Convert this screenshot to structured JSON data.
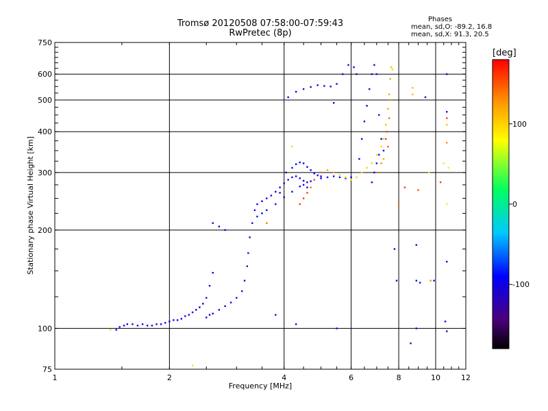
{
  "chart_data": {
    "type": "scatter",
    "title_line1": "Tromsø 20120508 07:58:00-07:59:43",
    "title_line2": "RwPretec (8p)",
    "phases_title": "Phases",
    "phases_line1": "mean, sd,O: -89.2, 16.8",
    "phases_line2": "mean, sd,X:  91.3, 20.5",
    "xlabel": "Frequency [MHz]",
    "ylabel": "Stationary phase Virtual Height [km]",
    "x_scale": "log",
    "y_scale": "log",
    "xlim": [
      1,
      12
    ],
    "ylim": [
      75,
      750
    ],
    "x_ticks": [
      1,
      2,
      4,
      6,
      8,
      10,
      12
    ],
    "x_tick_labels": [
      "1",
      "2",
      "4",
      "6",
      "8",
      "10",
      "12"
    ],
    "y_ticks": [
      75,
      100,
      200,
      300,
      400,
      500,
      600,
      750
    ],
    "y_tick_labels": [
      "75",
      "100",
      "200",
      "300",
      "400",
      "500",
      "600",
      "750"
    ],
    "grid": true,
    "colorbar": {
      "label": "[deg]",
      "range": [
        -180,
        180
      ],
      "ticks": [
        100,
        0,
        -100
      ],
      "tick_labels": [
        "100",
        "0",
        "-100"
      ]
    },
    "series": [
      {
        "points": [
          [
            1.45,
            99,
            -100
          ],
          [
            1.48,
            101,
            -100
          ],
          [
            1.52,
            102,
            -100
          ],
          [
            1.55,
            103,
            -100
          ],
          [
            1.6,
            103,
            -100
          ],
          [
            1.65,
            102,
            -100
          ],
          [
            1.7,
            103,
            -100
          ],
          [
            1.75,
            102,
            -100
          ],
          [
            1.8,
            102,
            -100
          ],
          [
            1.85,
            103,
            -100
          ],
          [
            1.9,
            103,
            -100
          ],
          [
            1.95,
            104,
            -100
          ],
          [
            2.0,
            105,
            -100
          ],
          [
            2.05,
            106,
            -100
          ],
          [
            2.1,
            106,
            -100
          ],
          [
            2.15,
            107,
            -100
          ],
          [
            2.2,
            109,
            -100
          ],
          [
            2.25,
            110,
            -100
          ],
          [
            2.3,
            112,
            -100
          ],
          [
            2.35,
            114,
            -100
          ],
          [
            2.4,
            116,
            -100
          ],
          [
            2.45,
            119,
            -100
          ],
          [
            2.5,
            124,
            -100
          ],
          [
            2.55,
            135,
            -100
          ],
          [
            2.6,
            148,
            -100
          ],
          [
            2.5,
            108,
            -100
          ],
          [
            2.55,
            110,
            -100
          ],
          [
            2.6,
            111,
            -100
          ],
          [
            2.7,
            114,
            -100
          ],
          [
            2.8,
            117,
            -100
          ],
          [
            2.9,
            120,
            -100
          ],
          [
            3.0,
            124,
            -100
          ],
          [
            3.1,
            130,
            -100
          ],
          [
            3.15,
            140,
            -100
          ],
          [
            3.2,
            155,
            -120
          ],
          [
            3.22,
            170,
            -120
          ],
          [
            3.25,
            190,
            -120
          ],
          [
            3.3,
            210,
            -100
          ],
          [
            3.35,
            230,
            -100
          ],
          [
            3.4,
            240,
            -100
          ],
          [
            3.5,
            245,
            -100
          ],
          [
            3.6,
            250,
            -100
          ],
          [
            3.7,
            255,
            -100
          ],
          [
            3.8,
            262,
            -100
          ],
          [
            3.9,
            270,
            -100
          ],
          [
            4.0,
            278,
            -100
          ],
          [
            4.1,
            285,
            -100
          ],
          [
            4.2,
            290,
            -100
          ],
          [
            4.3,
            292,
            -100
          ],
          [
            4.4,
            288,
            -100
          ],
          [
            4.5,
            283,
            -100
          ],
          [
            4.6,
            280,
            -100
          ],
          [
            4.7,
            282,
            -100
          ],
          [
            4.8,
            285,
            -100
          ],
          [
            5.0,
            288,
            -100
          ],
          [
            5.2,
            290,
            -100
          ],
          [
            5.4,
            292,
            -100
          ],
          [
            5.6,
            290,
            -100
          ],
          [
            5.8,
            288,
            -100
          ],
          [
            6.0,
            290,
            -100
          ],
          [
            3.4,
            220,
            -100
          ],
          [
            3.5,
            225,
            -100
          ],
          [
            3.6,
            230,
            -100
          ],
          [
            3.8,
            240,
            -100
          ],
          [
            4.0,
            252,
            -100
          ],
          [
            4.2,
            262,
            -100
          ],
          [
            4.4,
            272,
            -100
          ],
          [
            4.5,
            275,
            -100
          ],
          [
            4.6,
            270,
            -100
          ],
          [
            2.6,
            210,
            -100
          ],
          [
            2.7,
            205,
            -100
          ],
          [
            2.8,
            200,
            -90
          ],
          [
            3.9,
            260,
            -100
          ],
          [
            4.05,
            300,
            -100
          ],
          [
            4.2,
            310,
            -100
          ],
          [
            4.3,
            318,
            -90
          ],
          [
            4.4,
            322,
            -90
          ],
          [
            4.5,
            320,
            -90
          ],
          [
            4.6,
            312,
            -90
          ],
          [
            4.7,
            305,
            -90
          ],
          [
            4.8,
            298,
            -90
          ],
          [
            4.9,
            294,
            -90
          ],
          [
            5.0,
            292,
            -90
          ],
          [
            4.1,
            510,
            -100
          ],
          [
            4.3,
            530,
            -100
          ],
          [
            4.5,
            540,
            -100
          ],
          [
            4.7,
            548,
            -100
          ],
          [
            4.9,
            555,
            -100
          ],
          [
            5.1,
            552,
            -100
          ],
          [
            5.3,
            550,
            -100
          ],
          [
            5.5,
            560,
            -100
          ],
          [
            5.7,
            600,
            -100
          ],
          [
            5.9,
            640,
            -100
          ],
          [
            6.1,
            630,
            -100
          ],
          [
            6.2,
            600,
            -100
          ],
          [
            6.3,
            330,
            -100
          ],
          [
            6.4,
            380,
            -100
          ],
          [
            6.5,
            430,
            -100
          ],
          [
            6.6,
            480,
            -100
          ],
          [
            6.7,
            540,
            -100
          ],
          [
            6.8,
            600,
            -100
          ],
          [
            6.9,
            640,
            -100
          ],
          [
            7.0,
            600,
            -100
          ],
          [
            7.1,
            450,
            -100
          ],
          [
            7.2,
            380,
            -100
          ],
          [
            7.3,
            350,
            -100
          ],
          [
            6.8,
            280,
            -100
          ],
          [
            6.9,
            300,
            -100
          ],
          [
            7.0,
            320,
            -100
          ],
          [
            7.1,
            340,
            -100
          ],
          [
            2.3,
            77,
            60
          ],
          [
            1.4,
            99,
            60
          ],
          [
            5.5,
            100,
            -100
          ],
          [
            3.6,
            210,
            140
          ],
          [
            5.4,
            490,
            -100
          ]
        ]
      },
      {
        "points": [
          [
            4.4,
            240,
            160
          ],
          [
            4.5,
            250,
            160
          ],
          [
            4.6,
            260,
            160
          ],
          [
            4.7,
            270,
            140
          ],
          [
            4.8,
            285,
            140
          ],
          [
            5.0,
            300,
            140
          ],
          [
            5.2,
            305,
            120
          ],
          [
            5.4,
            300,
            120
          ],
          [
            5.6,
            295,
            100
          ],
          [
            5.8,
            290,
            100
          ],
          [
            6.0,
            285,
            100
          ],
          [
            6.2,
            290,
            100
          ],
          [
            6.4,
            300,
            100
          ],
          [
            6.6,
            310,
            100
          ],
          [
            6.8,
            320,
            100
          ],
          [
            7.0,
            340,
            100
          ],
          [
            7.2,
            360,
            100
          ],
          [
            7.3,
            380,
            110
          ],
          [
            7.4,
            420,
            110
          ],
          [
            7.5,
            470,
            120
          ],
          [
            7.55,
            520,
            120
          ],
          [
            7.6,
            580,
            120
          ],
          [
            7.65,
            630,
            110
          ],
          [
            7.4,
            380,
            160
          ],
          [
            7.45,
            400,
            160
          ],
          [
            7.5,
            360,
            150
          ],
          [
            7.55,
            440,
            140
          ],
          [
            7.6,
            500,
            130
          ],
          [
            7.7,
            620,
            100
          ],
          [
            7.1,
            300,
            140
          ],
          [
            7.2,
            320,
            130
          ],
          [
            7.3,
            330,
            120
          ],
          [
            8.7,
            545,
            110
          ],
          [
            8.7,
            520,
            110
          ],
          [
            10.7,
            440,
            160
          ],
          [
            10.7,
            420,
            110
          ],
          [
            10.7,
            370,
            130
          ],
          [
            10.5,
            320,
            90
          ],
          [
            10.8,
            310,
            90
          ],
          [
            8.3,
            270,
            160
          ],
          [
            9.0,
            265,
            150
          ],
          [
            9.6,
            300,
            100
          ],
          [
            10.3,
            280,
            160
          ],
          [
            8.0,
            240,
            140
          ],
          [
            9.7,
            140,
            130
          ],
          [
            10.7,
            240,
            90
          ],
          [
            4.2,
            360,
            100
          ]
        ]
      },
      {
        "points": [
          [
            7.8,
            175,
            -100
          ],
          [
            7.9,
            140,
            -100
          ],
          [
            8.9,
            180,
            -120
          ],
          [
            9.1,
            138,
            -100
          ],
          [
            10.7,
            160,
            -100
          ],
          [
            10.6,
            105,
            -100
          ],
          [
            10.7,
            98,
            -120
          ],
          [
            8.9,
            100,
            -100
          ],
          [
            8.6,
            90,
            -130
          ],
          [
            3.8,
            110,
            -120
          ],
          [
            4.3,
            103,
            -130
          ],
          [
            10.7,
            600,
            -100
          ],
          [
            8.9,
            140,
            -100
          ],
          [
            9.9,
            140,
            -120
          ],
          [
            10.7,
            460,
            -100
          ],
          [
            9.4,
            510,
            -100
          ]
        ]
      }
    ]
  }
}
